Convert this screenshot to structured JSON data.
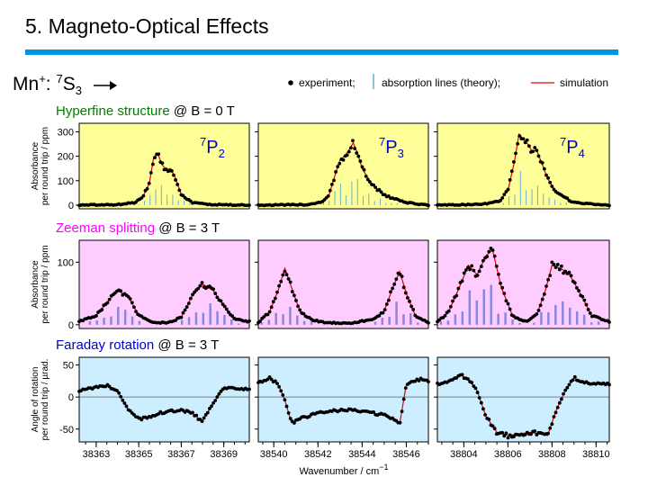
{
  "slide": {
    "title": "5. Magneto-Optical Effects",
    "ion_prefix": "Mn",
    "ion_charge": "+",
    "ion_colon": ": ",
    "ion_state_sup": "7",
    "ion_state_main": "S",
    "ion_state_sub": "3"
  },
  "legend": {
    "experiment": "experiment;",
    "lines": "absorption lines (theory);",
    "simulation": "simulation"
  },
  "rows": [
    {
      "title_colored": "Hyperfine structure",
      "title_rest": " @ B = 0 T",
      "title_color": "#008000",
      "bg": "#ffff99",
      "ylabel1": "Absorbance",
      "ylabel2": "per round trip / ppm"
    },
    {
      "title_colored": "Zeeman splitting",
      "title_rest": " @ B = 3 T",
      "title_color": "#ff00ff",
      "bg": "#ffccff",
      "ylabel1": "Absorbance",
      "ylabel2": "per round trip / ppm"
    },
    {
      "title_colored": "Faraday rotation",
      "title_rest": " @ B = 3 T",
      "title_color": "#0000cc",
      "bg": "#cceeff",
      "ylabel1": "Angle of rotation",
      "ylabel2": "per round trip / µrad."
    }
  ],
  "columns": [
    {
      "term": "P",
      "term_sup": "7",
      "term_sub": "2",
      "xlim": [
        38362.2,
        38370.2
      ],
      "xticks": [
        38363,
        38365,
        38367,
        38369
      ]
    },
    {
      "term": "P",
      "term_sup": "7",
      "term_sub": "3",
      "xlim": [
        38539.3,
        38547.0
      ],
      "xticks": [
        38540,
        38542,
        38544,
        38546
      ]
    },
    {
      "term": "P",
      "term_sup": "7",
      "term_sub": "4",
      "xlim": [
        38802.8,
        38810.6
      ],
      "xticks": [
        38804,
        38806,
        38808,
        38810
      ]
    }
  ],
  "xlabel": "Wavenumber / cm",
  "xlabel_sup": "−1",
  "colors": {
    "experiment": "#000000",
    "simulation": "#e00000",
    "lines": "#6aaed6",
    "zeeman_lines": "#8888dd",
    "zero_line": "#808080"
  },
  "chart_data": [
    {
      "panel": "hyperfine-7P2",
      "type": "line",
      "ylim": [
        -15,
        335
      ],
      "yticks": [
        0,
        100,
        200,
        300
      ],
      "x": [
        38362.2,
        38364.0,
        38364.8,
        38365.2,
        38365.5,
        38365.7,
        38365.9,
        38366.1,
        38366.3,
        38366.5,
        38366.7,
        38367.0,
        38367.5,
        38368.5,
        38370.2
      ],
      "y": [
        0,
        2,
        10,
        35,
        90,
        195,
        210,
        165,
        145,
        150,
        115,
        45,
        10,
        2,
        0
      ]
    },
    {
      "panel": "hyperfine-7P3",
      "type": "line",
      "ylim": [
        -15,
        335
      ],
      "yticks": [
        0,
        100,
        200,
        300
      ],
      "x": [
        38539.3,
        38541.5,
        38542.2,
        38542.5,
        38542.8,
        38543.0,
        38543.2,
        38543.4,
        38543.6,
        38543.8,
        38544.0,
        38544.4,
        38545.0,
        38546.0,
        38547.0
      ],
      "y": [
        0,
        2,
        12,
        40,
        130,
        185,
        200,
        225,
        255,
        210,
        150,
        90,
        40,
        10,
        0
      ]
    },
    {
      "panel": "hyperfine-7P4",
      "type": "line",
      "ylim": [
        -15,
        335
      ],
      "yticks": [
        0,
        100,
        200,
        300
      ],
      "x": [
        38802.8,
        38804.8,
        38805.6,
        38806.0,
        38806.3,
        38806.5,
        38806.7,
        38806.9,
        38807.1,
        38807.3,
        38807.5,
        38807.8,
        38808.2,
        38809.0,
        38810.6
      ],
      "y": [
        0,
        3,
        15,
        60,
        180,
        290,
        270,
        250,
        220,
        225,
        180,
        110,
        50,
        10,
        0
      ]
    },
    {
      "panel": "zeeman-7P2",
      "type": "line",
      "ylim": [
        -6,
        135
      ],
      "yticks": [
        0,
        100
      ],
      "x": [
        38362.2,
        38363.0,
        38363.5,
        38364.0,
        38364.5,
        38365.0,
        38365.5,
        38366.0,
        38366.5,
        38367.0,
        38367.5,
        38368.0,
        38368.5,
        38369.0,
        38369.5,
        38370.2
      ],
      "y": [
        5,
        15,
        35,
        55,
        45,
        15,
        5,
        3,
        4,
        12,
        45,
        65,
        55,
        30,
        10,
        5
      ]
    },
    {
      "panel": "zeeman-7P3",
      "type": "line",
      "ylim": [
        -6,
        135
      ],
      "yticks": [
        0,
        100
      ],
      "x": [
        38539.3,
        38539.8,
        38540.2,
        38540.5,
        38540.8,
        38541.2,
        38541.8,
        38542.5,
        38543.5,
        38544.5,
        38545.0,
        38545.4,
        38545.7,
        38546.0,
        38546.4,
        38547.0
      ],
      "y": [
        3,
        20,
        55,
        90,
        60,
        20,
        7,
        3,
        3,
        8,
        22,
        60,
        85,
        50,
        15,
        3
      ]
    },
    {
      "panel": "zeeman-7P4",
      "type": "line",
      "ylim": [
        -6,
        135
      ],
      "yticks": [
        0,
        100
      ],
      "x": [
        38802.8,
        38803.3,
        38803.8,
        38804.2,
        38804.6,
        38805.0,
        38805.3,
        38805.7,
        38806.2,
        38806.8,
        38807.3,
        38807.7,
        38808.0,
        38808.4,
        38808.8,
        38809.2,
        38809.8,
        38810.6
      ],
      "y": [
        5,
        20,
        60,
        95,
        80,
        110,
        120,
        60,
        15,
        5,
        15,
        55,
        95,
        90,
        80,
        55,
        15,
        5
      ]
    },
    {
      "panel": "faraday-7P2",
      "type": "line",
      "ylim": [
        -70,
        62
      ],
      "yticks": [
        -50,
        0,
        50
      ],
      "x": [
        38362.2,
        38363.0,
        38363.5,
        38364.0,
        38364.5,
        38365.0,
        38366.0,
        38367.0,
        38367.5,
        38368.0,
        38368.4,
        38369.0,
        38370.2
      ],
      "y": [
        10,
        15,
        18,
        10,
        -20,
        -35,
        -25,
        -20,
        -25,
        -38,
        -15,
        15,
        12
      ]
    },
    {
      "panel": "faraday-7P3",
      "type": "line",
      "ylim": [
        -70,
        62
      ],
      "yticks": [
        -50,
        0,
        50
      ],
      "x": [
        38539.3,
        38539.8,
        38540.2,
        38540.5,
        38540.8,
        38541.5,
        38542.5,
        38543.5,
        38544.5,
        38545.2,
        38545.7,
        38546.0,
        38546.5,
        38547.0
      ],
      "y": [
        22,
        30,
        20,
        -5,
        -40,
        -30,
        -22,
        -20,
        -25,
        -30,
        -42,
        20,
        28,
        25
      ]
    },
    {
      "panel": "faraday-7P4",
      "type": "line",
      "ylim": [
        -70,
        62
      ],
      "yticks": [
        -50,
        0,
        50
      ],
      "x": [
        38802.8,
        38803.4,
        38803.8,
        38804.2,
        38804.6,
        38805.0,
        38805.5,
        38806.0,
        38807.0,
        38807.8,
        38808.2,
        38808.6,
        38809.0,
        38809.5,
        38810.6
      ],
      "y": [
        20,
        25,
        35,
        28,
        10,
        -30,
        -55,
        -60,
        -55,
        -60,
        -20,
        10,
        30,
        22,
        20
      ]
    }
  ]
}
